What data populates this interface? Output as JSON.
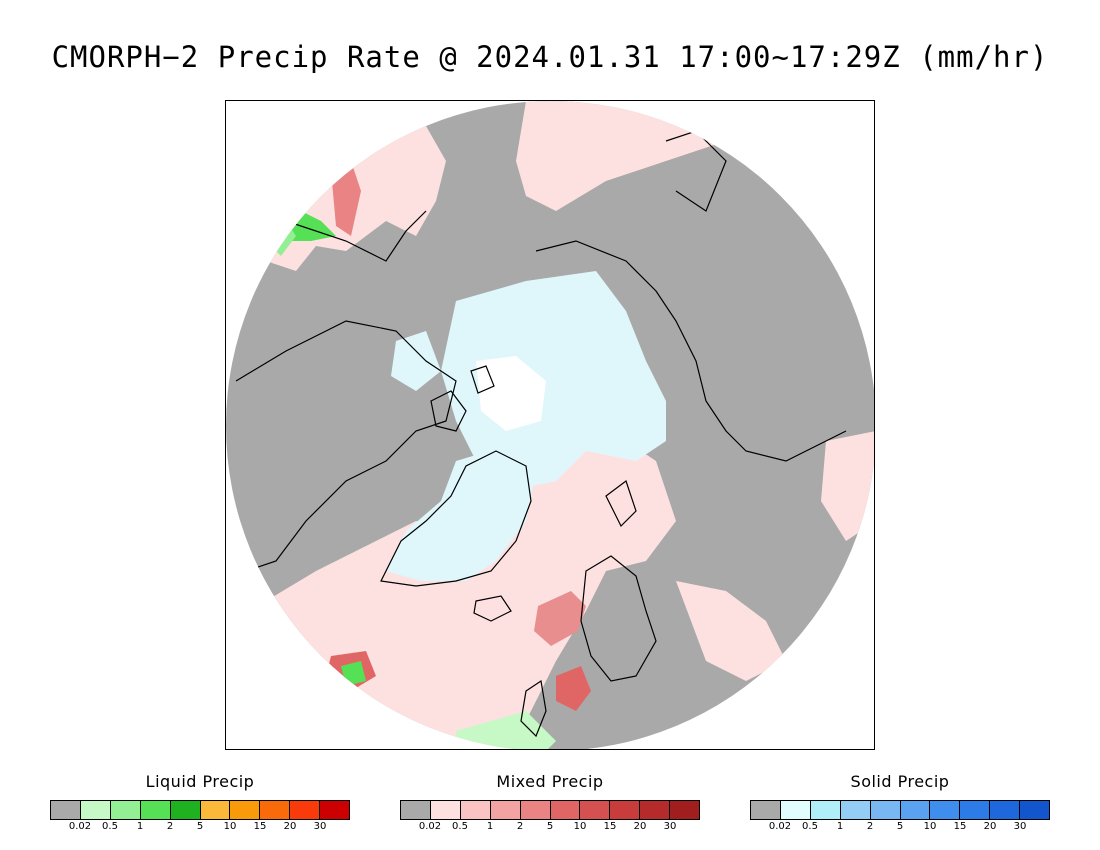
{
  "title": "CMORPH−2 Precip Rate @ 2024.01.31 17:00~17:29Z (mm/hr)",
  "colors": {
    "no_precip": "#a9a9a9",
    "ocean_mixed_light": "#fde1e1",
    "snow_light": "#dff7fb",
    "ice_white": "#ffffff",
    "coastline": "#000000"
  },
  "legends": [
    {
      "title": "Liquid Precip",
      "ticks": [
        "0.02",
        "0.5",
        "1",
        "2",
        "5",
        "10",
        "15",
        "20",
        "30"
      ],
      "colors": [
        "#a9a9a9",
        "#c6f9c6",
        "#94ef94",
        "#55e055",
        "#1fb11f",
        "#fbb93a",
        "#f99a0a",
        "#f96a0a",
        "#f93a0a",
        "#cc0000"
      ]
    },
    {
      "title": "Mixed Precip",
      "ticks": [
        "0.02",
        "0.5",
        "1",
        "2",
        "5",
        "10",
        "15",
        "20",
        "30"
      ],
      "colors": [
        "#a9a9a9",
        "#fde1e1",
        "#fbc4c4",
        "#f4a3a3",
        "#ea8383",
        "#e06666",
        "#d55050",
        "#c83c3c",
        "#b52a2a",
        "#a01e1e"
      ]
    },
    {
      "title": "Solid Precip",
      "ticks": [
        "0.02",
        "0.5",
        "1",
        "2",
        "5",
        "10",
        "15",
        "20",
        "30"
      ],
      "colors": [
        "#a9a9a9",
        "#e2fdfd",
        "#b0eef8",
        "#93cdf5",
        "#78b7f2",
        "#5aa2f0",
        "#3f8eed",
        "#2d7be6",
        "#1e67dd",
        "#1255cc"
      ]
    }
  ]
}
